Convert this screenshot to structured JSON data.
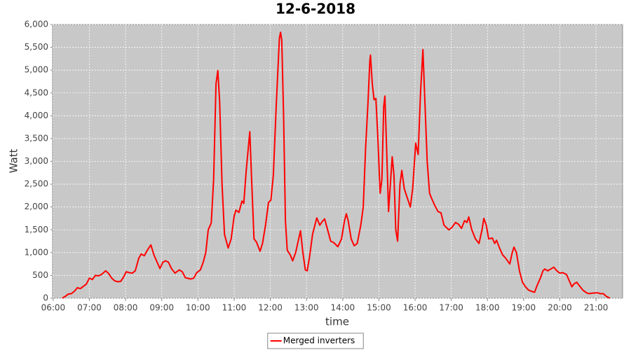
{
  "chart_data": {
    "type": "line",
    "title": "12-6-2018",
    "x_label": "time",
    "y_label": "Watt",
    "xlim": [
      "05:59",
      "21:44"
    ],
    "ylim": [
      0,
      6000
    ],
    "xticks": [
      "06:00",
      "07:00",
      "08:00",
      "09:00",
      "10:00",
      "11:00",
      "12:00",
      "13:00",
      "14:00",
      "15:00",
      "16:00",
      "17:00",
      "18:00",
      "19:00",
      "20:00",
      "21:00"
    ],
    "yticks": [
      0,
      500,
      {
        "value": 1000,
        "label": "1,000"
      },
      {
        "value": 1500,
        "label": "1,500"
      },
      {
        "value": 2000,
        "label": "2,000"
      },
      {
        "value": 2500,
        "label": "2,500"
      },
      {
        "value": 3000,
        "label": "3,000"
      },
      {
        "value": 3500,
        "label": "3,500"
      },
      {
        "value": 4000,
        "label": "4,000"
      },
      {
        "value": 4500,
        "label": "4,500"
      },
      {
        "value": 5000,
        "label": "5,000"
      },
      {
        "value": 5500,
        "label": "5,500"
      },
      {
        "value": 6000,
        "label": "6,000"
      }
    ],
    "grid": true,
    "legend": "bottom",
    "plot_background": "#c8c8c8",
    "x": [
      "06:15",
      "06:20",
      "06:25",
      "06:30",
      "06:35",
      "06:40",
      "06:45",
      "06:50",
      "06:55",
      "07:00",
      "07:05",
      "07:10",
      "07:15",
      "07:20",
      "07:27",
      "07:32",
      "07:37",
      "07:42",
      "07:47",
      "07:52",
      "07:57",
      "08:01",
      "08:06",
      "08:11",
      "08:16",
      "08:22",
      "08:26",
      "08:31",
      "08:36",
      "08:42",
      "08:47",
      "08:52",
      "08:57",
      "09:02",
      "09:06",
      "09:11",
      "09:16",
      "09:22",
      "09:29",
      "09:34",
      "09:39",
      "09:48",
      "09:53",
      "09:58",
      "10:04",
      "10:09",
      "10:13",
      "10:17",
      "10:22",
      "10:26",
      "10:30",
      "10:33",
      "10:36",
      "10:40",
      "10:44",
      "10:50",
      "10:55",
      "11:00",
      "11:03",
      "11:08",
      "11:13",
      "11:16",
      "11:20",
      "11:26",
      "11:29",
      "11:33",
      "11:37",
      "11:43",
      "11:47",
      "11:52",
      "11:57",
      "12:01",
      "12:05",
      "12:10",
      "12:15",
      "12:17",
      "12:19",
      "12:22",
      "12:25",
      "12:28",
      "12:33",
      "12:37",
      "12:42",
      "12:47",
      "12:50",
      "12:54",
      "12:58",
      "13:01",
      "13:05",
      "13:10",
      "13:17",
      "13:22",
      "13:26",
      "13:30",
      "13:35",
      "13:40",
      "13:45",
      "13:52",
      "13:58",
      "14:03",
      "14:06",
      "14:09",
      "14:14",
      "14:19",
      "14:24",
      "14:30",
      "14:34",
      "14:38",
      "14:42",
      "14:45",
      "14:46",
      "14:49",
      "14:52",
      "14:55",
      "14:58",
      "15:02",
      "15:05",
      "15:08",
      "15:10",
      "15:13",
      "15:16",
      "15:19",
      "15:22",
      "15:25",
      "15:28",
      "15:31",
      "15:35",
      "15:38",
      "15:42",
      "15:47",
      "15:52",
      "15:56",
      "16:01",
      "16:05",
      "16:09",
      "16:13",
      "16:16",
      "16:20",
      "16:24",
      "16:27",
      "16:32",
      "16:38",
      "16:43",
      "16:48",
      "16:56",
      "17:01",
      "17:07",
      "17:12",
      "17:17",
      "17:22",
      "17:26",
      "17:29",
      "17:34",
      "17:40",
      "17:46",
      "17:51",
      "17:54",
      "17:58",
      "18:02",
      "18:08",
      "18:12",
      "18:15",
      "18:20",
      "18:25",
      "18:30",
      "18:37",
      "18:41",
      "18:44",
      "18:48",
      "18:53",
      "18:58",
      "19:03",
      "19:08",
      "19:13",
      "19:18",
      "19:23",
      "19:28",
      "19:32",
      "19:35",
      "19:40",
      "19:45",
      "19:50",
      "19:55",
      "20:00",
      "20:05",
      "20:11",
      "20:15",
      "20:20",
      "20:24",
      "20:28",
      "20:32",
      "20:38",
      "20:44",
      "20:48",
      "20:54",
      "21:02",
      "21:07",
      "21:12",
      "21:17",
      "21:23"
    ],
    "series": [
      {
        "name": "Merged inverters",
        "color": "#ff0000",
        "values": [
          0,
          40,
          90,
          100,
          150,
          230,
          210,
          260,
          310,
          440,
          410,
          500,
          490,
          520,
          600,
          540,
          440,
          380,
          360,
          370,
          470,
          580,
          560,
          550,
          600,
          880,
          970,
          930,
          1050,
          1170,
          950,
          800,
          650,
          790,
          820,
          790,
          650,
          550,
          620,
          580,
          450,
          420,
          440,
          560,
          620,
          800,
          1000,
          1500,
          1650,
          2600,
          4700,
          4990,
          4300,
          2500,
          1400,
          1100,
          1300,
          1800,
          1930,
          1880,
          2130,
          2080,
          2800,
          3650,
          2600,
          1300,
          1230,
          1030,
          1200,
          1600,
          2100,
          2150,
          2700,
          4300,
          5700,
          5830,
          5650,
          4000,
          1700,
          1050,
          950,
          820,
          1000,
          1300,
          1480,
          1000,
          620,
          600,
          900,
          1400,
          1760,
          1600,
          1680,
          1740,
          1500,
          1250,
          1220,
          1130,
          1300,
          1700,
          1850,
          1700,
          1300,
          1150,
          1200,
          1600,
          2000,
          3300,
          4300,
          5200,
          5330,
          4700,
          4350,
          4380,
          3600,
          2300,
          2600,
          4200,
          4430,
          3200,
          1900,
          2500,
          3100,
          2700,
          1500,
          1250,
          2500,
          2800,
          2400,
          2200,
          2000,
          2400,
          3400,
          3150,
          4500,
          5450,
          4400,
          3000,
          2300,
          2200,
          2050,
          1900,
          1870,
          1600,
          1500,
          1550,
          1660,
          1620,
          1530,
          1700,
          1660,
          1780,
          1500,
          1300,
          1200,
          1500,
          1750,
          1600,
          1300,
          1320,
          1200,
          1270,
          1100,
          950,
          880,
          750,
          1000,
          1120,
          1000,
          600,
          350,
          250,
          180,
          150,
          130,
          300,
          450,
          600,
          640,
          600,
          640,
          680,
          600,
          550,
          560,
          520,
          400,
          250,
          320,
          350,
          280,
          180,
          120,
          100,
          110,
          120,
          100,
          100,
          40,
          0
        ]
      }
    ]
  }
}
